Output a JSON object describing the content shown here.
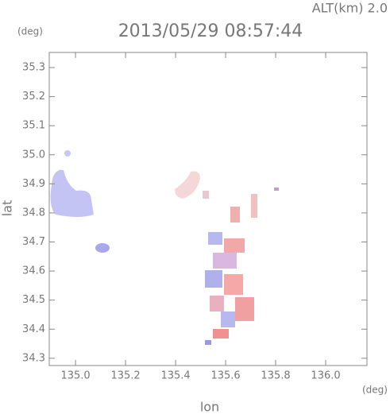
{
  "chart_data": {
    "type": "scatter",
    "title": "2013/05/29 08:57:44",
    "subtitle": "ALT(km) 2.0",
    "x_label": "lon",
    "y_label": "lat",
    "x_unit": "(deg)",
    "y_unit": "(deg)",
    "xlim": [
      134.895,
      136.165
    ],
    "ylim": [
      34.275,
      35.352
    ],
    "xticks": [
      {
        "value": 135,
        "label": "135.0"
      },
      135.2,
      135.4,
      135.6,
      135.8,
      {
        "value": 136,
        "label": "136.0"
      }
    ],
    "yticks": [
      34.3,
      34.4,
      34.5,
      34.6,
      34.7,
      34.8,
      34.9,
      {
        "value": 35,
        "label": "35.0"
      },
      35.1,
      35.2,
      35.3
    ]
  }
}
